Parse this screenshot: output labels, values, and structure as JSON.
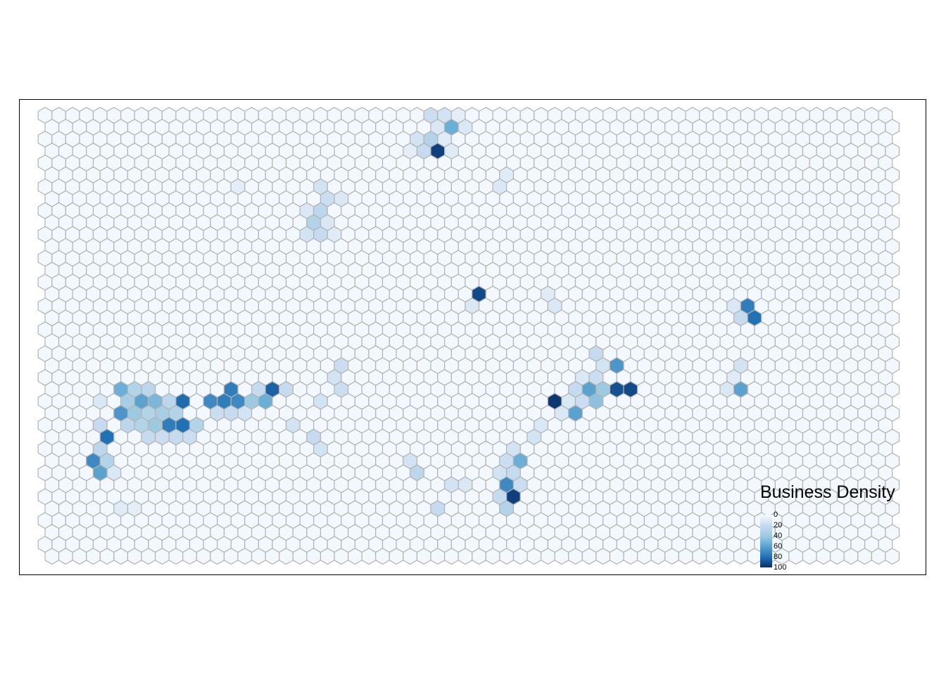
{
  "legend": {
    "title": "Business Density",
    "ticks": [
      "0",
      "20",
      "40",
      "60",
      "80",
      "100"
    ]
  },
  "scale": {
    "min": 0,
    "max": 100,
    "low_color": "#f7fbff",
    "high_color": "#08306b",
    "border_color": "#b3b3b3"
  },
  "grid": {
    "columns": 62,
    "rows": 43
  },
  "chart_data": {
    "type": "heatmap",
    "title": "",
    "legend_title": "Business Density",
    "grid_columns": 62,
    "grid_rows": 43,
    "default_value": 2,
    "cells": [
      {
        "col": 28,
        "row": 0,
        "value": 18
      },
      {
        "col": 29,
        "row": 0,
        "value": 15
      },
      {
        "col": 30,
        "row": 0,
        "value": 8
      },
      {
        "col": 28,
        "row": 1,
        "value": 12
      },
      {
        "col": 29,
        "row": 1,
        "value": 55
      },
      {
        "col": 30,
        "row": 1,
        "value": 12
      },
      {
        "col": 27,
        "row": 2,
        "value": 15
      },
      {
        "col": 28,
        "row": 2,
        "value": 30
      },
      {
        "col": 29,
        "row": 2,
        "value": 10
      },
      {
        "col": 26,
        "row": 3,
        "value": 8
      },
      {
        "col": 27,
        "row": 3,
        "value": 20
      },
      {
        "col": 28,
        "row": 3,
        "value": 95
      },
      {
        "col": 29,
        "row": 3,
        "value": 10
      },
      {
        "col": 33,
        "row": 5,
        "value": 10
      },
      {
        "col": 33,
        "row": 6,
        "value": 12
      },
      {
        "col": 14,
        "row": 6,
        "value": 8
      },
      {
        "col": 20,
        "row": 6,
        "value": 15
      },
      {
        "col": 20,
        "row": 7,
        "value": 18
      },
      {
        "col": 21,
        "row": 7,
        "value": 12
      },
      {
        "col": 19,
        "row": 8,
        "value": 12
      },
      {
        "col": 20,
        "row": 8,
        "value": 25
      },
      {
        "col": 19,
        "row": 9,
        "value": 30
      },
      {
        "col": 20,
        "row": 9,
        "value": 12
      },
      {
        "col": 19,
        "row": 10,
        "value": 15
      },
      {
        "col": 20,
        "row": 10,
        "value": 20
      },
      {
        "col": 21,
        "row": 10,
        "value": 10
      },
      {
        "col": 31,
        "row": 15,
        "value": 92
      },
      {
        "col": 31,
        "row": 16,
        "value": 12
      },
      {
        "col": 36,
        "row": 15,
        "value": 10
      },
      {
        "col": 37,
        "row": 16,
        "value": 12
      },
      {
        "col": 50,
        "row": 16,
        "value": 12
      },
      {
        "col": 51,
        "row": 16,
        "value": 75
      },
      {
        "col": 50,
        "row": 17,
        "value": 20
      },
      {
        "col": 51,
        "row": 17,
        "value": 80
      },
      {
        "col": 40,
        "row": 20,
        "value": 20
      },
      {
        "col": 40,
        "row": 21,
        "value": 15
      },
      {
        "col": 41,
        "row": 21,
        "value": 65
      },
      {
        "col": 39,
        "row": 22,
        "value": 12
      },
      {
        "col": 40,
        "row": 22,
        "value": 18
      },
      {
        "col": 38,
        "row": 23,
        "value": 20
      },
      {
        "col": 39,
        "row": 23,
        "value": 60
      },
      {
        "col": 40,
        "row": 23,
        "value": 40
      },
      {
        "col": 41,
        "row": 23,
        "value": 90
      },
      {
        "col": 42,
        "row": 23,
        "value": 92
      },
      {
        "col": 37,
        "row": 24,
        "value": 98
      },
      {
        "col": 38,
        "row": 24,
        "value": 12
      },
      {
        "col": 39,
        "row": 24,
        "value": 18
      },
      {
        "col": 40,
        "row": 24,
        "value": 45
      },
      {
        "col": 38,
        "row": 25,
        "value": 60
      },
      {
        "col": 37,
        "row": 25,
        "value": 12
      },
      {
        "col": 36,
        "row": 26,
        "value": 12
      },
      {
        "col": 35,
        "row": 27,
        "value": 15
      },
      {
        "col": 34,
        "row": 28,
        "value": 15
      },
      {
        "col": 34,
        "row": 29,
        "value": 55
      },
      {
        "col": 33,
        "row": 29,
        "value": 18
      },
      {
        "col": 33,
        "row": 30,
        "value": 15
      },
      {
        "col": 34,
        "row": 30,
        "value": 20
      },
      {
        "col": 33,
        "row": 31,
        "value": 70
      },
      {
        "col": 34,
        "row": 31,
        "value": 18
      },
      {
        "col": 33,
        "row": 32,
        "value": 20
      },
      {
        "col": 34,
        "row": 32,
        "value": 95
      },
      {
        "col": 33,
        "row": 33,
        "value": 30
      },
      {
        "col": 50,
        "row": 21,
        "value": 15
      },
      {
        "col": 50,
        "row": 22,
        "value": 10
      },
      {
        "col": 50,
        "row": 23,
        "value": 60
      },
      {
        "col": 49,
        "row": 23,
        "value": 12
      },
      {
        "col": 21,
        "row": 21,
        "value": 18
      },
      {
        "col": 21,
        "row": 22,
        "value": 15
      },
      {
        "col": 21,
        "row": 23,
        "value": 18
      },
      {
        "col": 20,
        "row": 24,
        "value": 15
      },
      {
        "col": 5,
        "row": 23,
        "value": 55
      },
      {
        "col": 6,
        "row": 23,
        "value": 30
      },
      {
        "col": 7,
        "row": 23,
        "value": 25
      },
      {
        "col": 4,
        "row": 24,
        "value": 12
      },
      {
        "col": 6,
        "row": 24,
        "value": 35
      },
      {
        "col": 7,
        "row": 24,
        "value": 60
      },
      {
        "col": 8,
        "row": 24,
        "value": 50
      },
      {
        "col": 9,
        "row": 24,
        "value": 25
      },
      {
        "col": 10,
        "row": 24,
        "value": 82
      },
      {
        "col": 5,
        "row": 25,
        "value": 65
      },
      {
        "col": 6,
        "row": 25,
        "value": 40
      },
      {
        "col": 7,
        "row": 25,
        "value": 30
      },
      {
        "col": 8,
        "row": 25,
        "value": 35
      },
      {
        "col": 9,
        "row": 25,
        "value": 30
      },
      {
        "col": 4,
        "row": 26,
        "value": 20
      },
      {
        "col": 6,
        "row": 26,
        "value": 25
      },
      {
        "col": 7,
        "row": 26,
        "value": 30
      },
      {
        "col": 8,
        "row": 26,
        "value": 40
      },
      {
        "col": 9,
        "row": 26,
        "value": 75
      },
      {
        "col": 10,
        "row": 26,
        "value": 80
      },
      {
        "col": 11,
        "row": 26,
        "value": 30
      },
      {
        "col": 4,
        "row": 27,
        "value": 80
      },
      {
        "col": 7,
        "row": 27,
        "value": 20
      },
      {
        "col": 8,
        "row": 27,
        "value": 18
      },
      {
        "col": 9,
        "row": 27,
        "value": 20
      },
      {
        "col": 10,
        "row": 27,
        "value": 18
      },
      {
        "col": 4,
        "row": 28,
        "value": 25
      },
      {
        "col": 3,
        "row": 29,
        "value": 70
      },
      {
        "col": 4,
        "row": 29,
        "value": 30
      },
      {
        "col": 4,
        "row": 30,
        "value": 60
      },
      {
        "col": 5,
        "row": 30,
        "value": 12
      },
      {
        "col": 13,
        "row": 23,
        "value": 75
      },
      {
        "col": 15,
        "row": 23,
        "value": 20
      },
      {
        "col": 16,
        "row": 23,
        "value": 85
      },
      {
        "col": 17,
        "row": 23,
        "value": 20
      },
      {
        "col": 12,
        "row": 24,
        "value": 70
      },
      {
        "col": 13,
        "row": 24,
        "value": 75
      },
      {
        "col": 14,
        "row": 24,
        "value": 70
      },
      {
        "col": 15,
        "row": 24,
        "value": 40
      },
      {
        "col": 16,
        "row": 24,
        "value": 55
      },
      {
        "col": 12,
        "row": 25,
        "value": 18
      },
      {
        "col": 13,
        "row": 25,
        "value": 20
      },
      {
        "col": 14,
        "row": 25,
        "value": 15
      },
      {
        "col": 18,
        "row": 26,
        "value": 15
      },
      {
        "col": 19,
        "row": 27,
        "value": 20
      },
      {
        "col": 20,
        "row": 28,
        "value": 15
      },
      {
        "col": 26,
        "row": 29,
        "value": 15
      },
      {
        "col": 27,
        "row": 30,
        "value": 25
      },
      {
        "col": 29,
        "row": 31,
        "value": 15
      },
      {
        "col": 30,
        "row": 31,
        "value": 12
      },
      {
        "col": 28,
        "row": 33,
        "value": 20
      },
      {
        "col": 5,
        "row": 33,
        "value": 10
      },
      {
        "col": 6,
        "row": 33,
        "value": 8
      }
    ]
  }
}
